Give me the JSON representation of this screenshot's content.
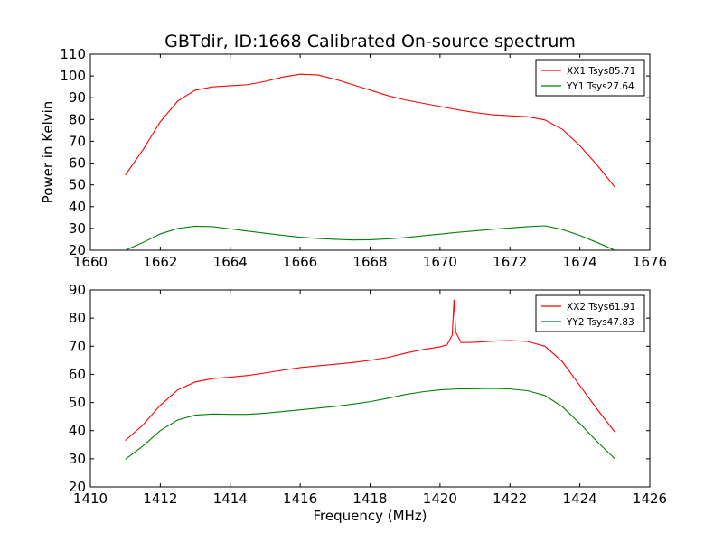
{
  "chart_data": [
    {
      "type": "line",
      "title": "GBTdir, ID:1668 Calibrated On-source spectrum",
      "xlabel": "",
      "ylabel": "Power in Kelvin",
      "xlim": [
        1660,
        1676
      ],
      "ylim": [
        20,
        110
      ],
      "xticks": [
        1660,
        1662,
        1664,
        1666,
        1668,
        1670,
        1672,
        1674,
        1676
      ],
      "yticks": [
        20,
        30,
        40,
        50,
        60,
        70,
        80,
        90,
        100,
        110
      ],
      "legend": "top-right",
      "grid": false,
      "series": [
        {
          "name": "XX1 Tsys85.71",
          "color": "#ff0000",
          "x": [
            1661.0,
            1661.5,
            1662.0,
            1662.5,
            1663.0,
            1663.5,
            1664.0,
            1664.5,
            1665.0,
            1665.5,
            1666.0,
            1666.5,
            1667.0,
            1667.5,
            1668.0,
            1668.5,
            1669.0,
            1669.5,
            1670.0,
            1670.5,
            1671.0,
            1671.5,
            1672.0,
            1672.5,
            1673.0,
            1673.5,
            1674.0,
            1674.5,
            1675.0
          ],
          "y": [
            54.5,
            66,
            79,
            88.5,
            93.5,
            95,
            95.5,
            96,
            97.5,
            99.5,
            100.8,
            100.5,
            98.5,
            96,
            93.5,
            91,
            89,
            87.5,
            86,
            84.5,
            83.2,
            82.2,
            81.7,
            81.3,
            79.8,
            75.5,
            68,
            59,
            49
          ]
        },
        {
          "name": "YY1 Tsys27.64",
          "color": "#008000",
          "x": [
            1661.0,
            1661.5,
            1662.0,
            1662.5,
            1663.0,
            1663.5,
            1664.0,
            1664.5,
            1665.0,
            1665.5,
            1666.0,
            1666.5,
            1667.0,
            1667.5,
            1668.0,
            1668.5,
            1669.0,
            1669.5,
            1670.0,
            1670.5,
            1671.0,
            1671.5,
            1672.0,
            1672.5,
            1673.0,
            1673.5,
            1674.0,
            1674.5,
            1675.0
          ],
          "y": [
            20,
            23.5,
            27.5,
            30,
            31,
            30.8,
            29.8,
            28.8,
            27.8,
            26.8,
            26,
            25.4,
            25,
            24.7,
            24.8,
            25.2,
            25.8,
            26.6,
            27.4,
            28.2,
            28.9,
            29.6,
            30.2,
            30.8,
            31.2,
            29.5,
            26.8,
            23.5,
            20
          ]
        }
      ]
    },
    {
      "type": "line",
      "title": "",
      "xlabel": "Frequency (MHz)",
      "ylabel": "",
      "xlim": [
        1410,
        1426
      ],
      "ylim": [
        20,
        90
      ],
      "xticks": [
        1410,
        1412,
        1414,
        1416,
        1418,
        1420,
        1422,
        1424,
        1426
      ],
      "yticks": [
        20,
        30,
        40,
        50,
        60,
        70,
        80,
        90
      ],
      "legend": "top-right",
      "grid": false,
      "series": [
        {
          "name": "XX2 Tsys61.91",
          "color": "#ff0000",
          "x": [
            1411.0,
            1411.5,
            1412.0,
            1412.5,
            1413.0,
            1413.5,
            1414.0,
            1414.5,
            1415.0,
            1415.5,
            1416.0,
            1416.5,
            1417.0,
            1417.5,
            1418.0,
            1418.5,
            1419.0,
            1419.5,
            1420.0,
            1420.2,
            1420.35,
            1420.4,
            1420.45,
            1420.6,
            1421.0,
            1421.5,
            1422.0,
            1422.5,
            1423.0,
            1423.5,
            1424.0,
            1424.5,
            1425.0
          ],
          "y": [
            36.5,
            42,
            49,
            54.5,
            57.3,
            58.5,
            59,
            59.6,
            60.5,
            61.5,
            62.4,
            63,
            63.6,
            64.2,
            65,
            66,
            67.5,
            68.8,
            69.8,
            70.5,
            74,
            86.5,
            75,
            71.3,
            71.4,
            71.8,
            72,
            71.7,
            70,
            64.5,
            56,
            47.5,
            39.5
          ]
        },
        {
          "name": "YY2 Tsys47.83",
          "color": "#008000",
          "x": [
            1411.0,
            1411.5,
            1412.0,
            1412.5,
            1413.0,
            1413.5,
            1414.0,
            1414.5,
            1415.0,
            1415.5,
            1416.0,
            1416.5,
            1417.0,
            1417.5,
            1418.0,
            1418.5,
            1419.0,
            1419.5,
            1420.0,
            1420.5,
            1421.0,
            1421.5,
            1422.0,
            1422.5,
            1423.0,
            1423.5,
            1424.0,
            1424.5,
            1425.0
          ],
          "y": [
            29.8,
            34.5,
            40,
            43.8,
            45.5,
            45.9,
            45.8,
            45.8,
            46.2,
            46.8,
            47.4,
            48,
            48.6,
            49.4,
            50.3,
            51.5,
            52.8,
            53.8,
            54.5,
            54.8,
            54.9,
            55,
            54.8,
            54.2,
            52.5,
            48.5,
            42.5,
            36,
            30
          ]
        }
      ]
    }
  ]
}
